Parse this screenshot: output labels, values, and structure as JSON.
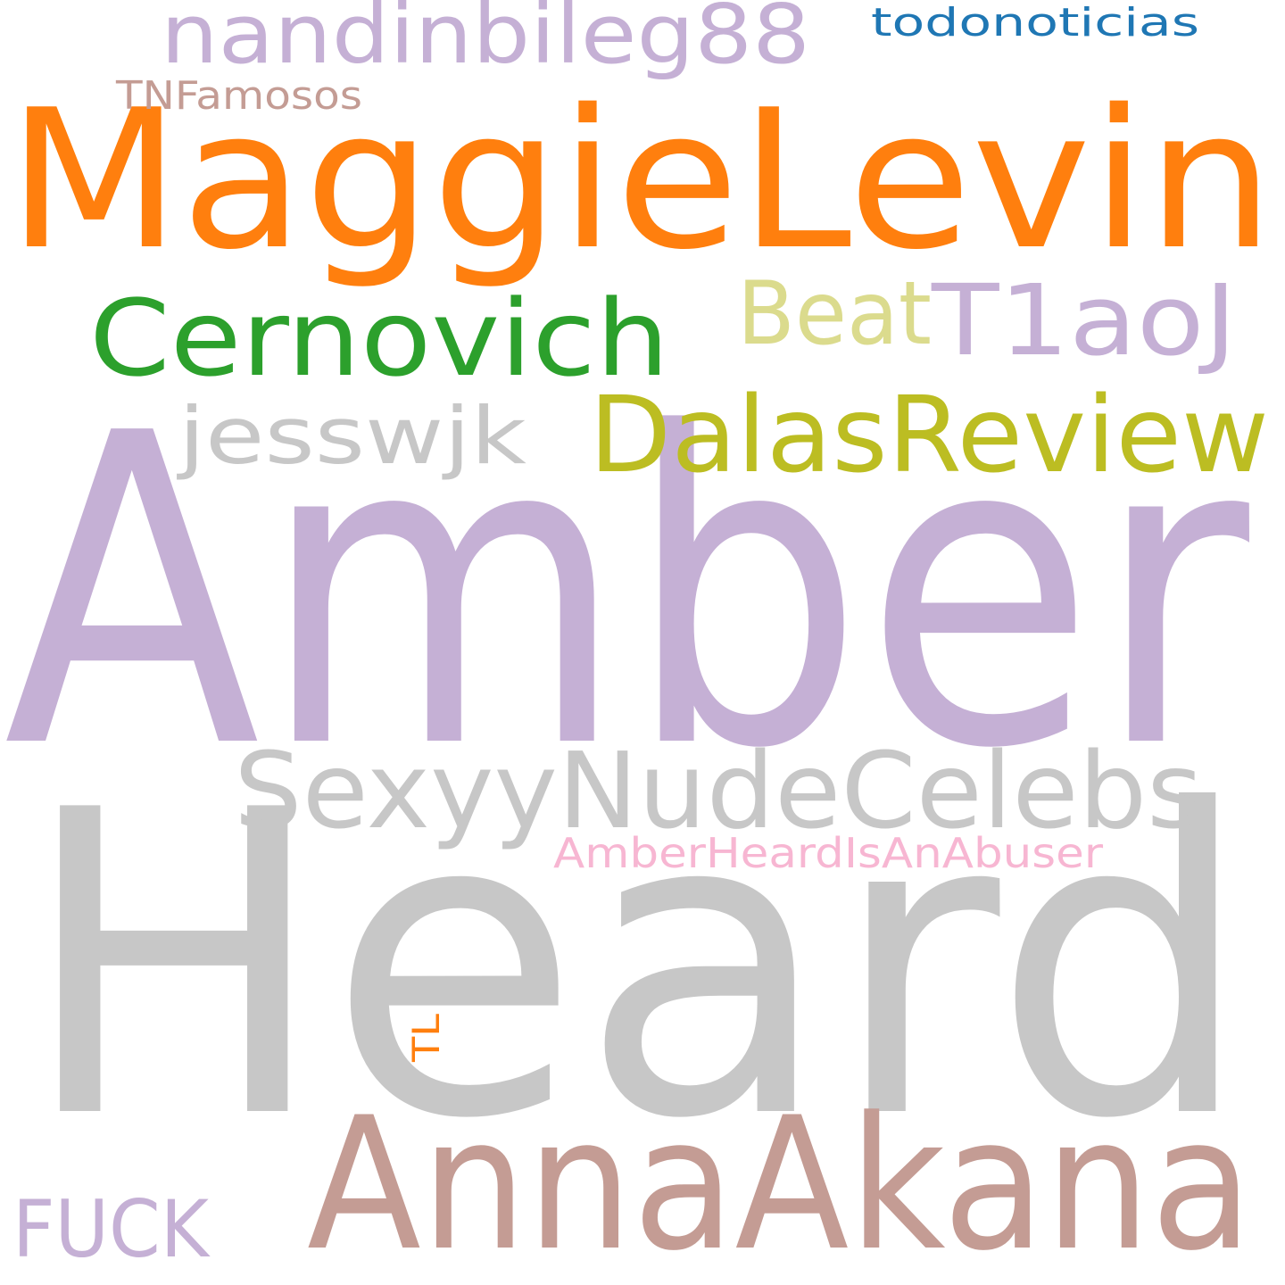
{
  "background": "#ffffff",
  "words": [
    {
      "text": "Amber",
      "color": "#c5b0d5"
    },
    {
      "text": "Heard",
      "color": "#c7c7c7"
    },
    {
      "text": "MaggieLevin",
      "color": "#ff7f0e"
    },
    {
      "text": "AnnaAkana",
      "color": "#c49c94"
    },
    {
      "text": "SexyyNudeCelebs",
      "color": "#c7c7c7"
    },
    {
      "text": "DalasReview",
      "color": "#bcbd22"
    },
    {
      "text": "Cernovich",
      "color": "#2ca02c"
    },
    {
      "text": "T1aoJ",
      "color": "#c5b0d5"
    },
    {
      "text": "Beat",
      "color": "#dbdb8d"
    },
    {
      "text": "nandinbileg88",
      "color": "#c5b0d5"
    },
    {
      "text": "jesswjk",
      "color": "#c7c7c7"
    },
    {
      "text": "FUCK",
      "color": "#c5b0d5"
    },
    {
      "text": "AmberHeardIsAnAbuser",
      "color": "#f7b6d2"
    },
    {
      "text": "TNFamosos",
      "color": "#c49c94"
    },
    {
      "text": "todonoticias",
      "color": "#1f77b4"
    },
    {
      "text": "TL",
      "color": "#ff7f0e"
    }
  ]
}
